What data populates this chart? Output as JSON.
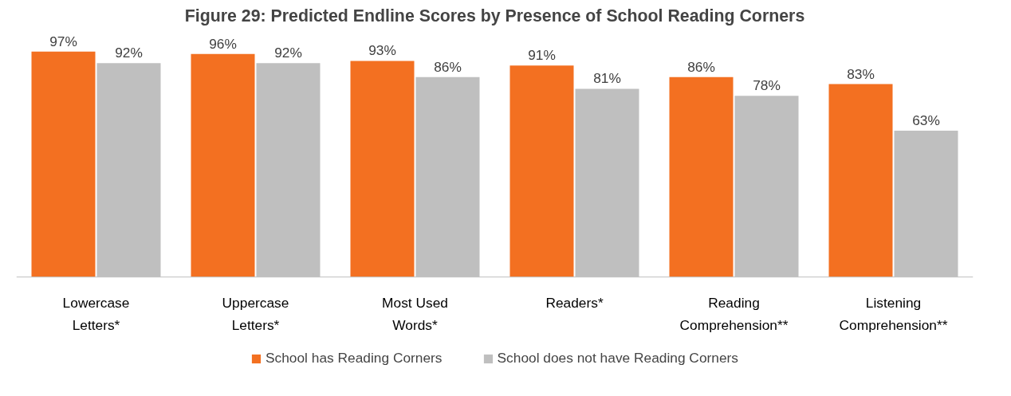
{
  "chart_data": {
    "type": "bar",
    "title": "Figure 29: Predicted Endline Scores by Presence of School Reading Corners",
    "categories": [
      "Lowercase\nLetters*",
      "Uppercase\nLetters*",
      "Most Used\nWords*",
      "Readers*",
      "Reading\nComprehension**",
      "Listening\nComprehension**"
    ],
    "series": [
      {
        "name": "School has Reading Corners",
        "color": "#f37021",
        "values": [
          97,
          96,
          93,
          91,
          86,
          83
        ],
        "value_labels": [
          "97%",
          "96%",
          "93%",
          "91%",
          "86%",
          "83%"
        ]
      },
      {
        "name": "School does not have Reading Corners",
        "color": "#bfbfbf",
        "values": [
          92,
          92,
          86,
          81,
          78,
          63
        ],
        "value_labels": [
          "92%",
          "92%",
          "86%",
          "81%",
          "78%",
          "63%"
        ]
      }
    ],
    "legend": "bottom"
  }
}
